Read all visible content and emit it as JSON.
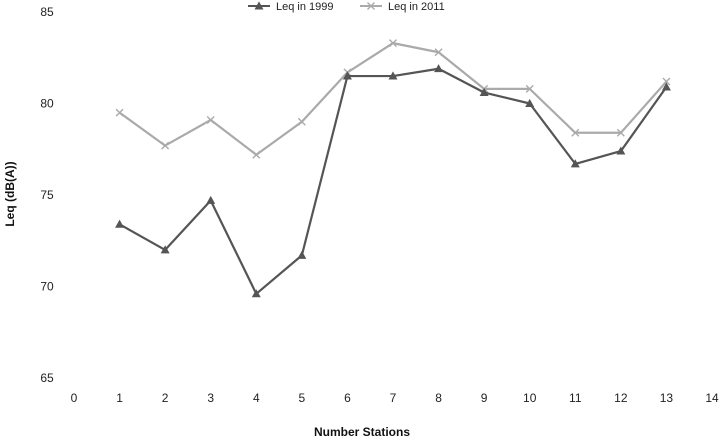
{
  "chart_data": {
    "type": "line",
    "xlabel": "Number Stations",
    "ylabel": "Leq (dB(A))",
    "xlim": [
      0,
      14
    ],
    "ylim": [
      65,
      85
    ],
    "x_ticks": [
      0,
      1,
      2,
      3,
      4,
      5,
      6,
      7,
      8,
      9,
      10,
      11,
      12,
      13,
      14
    ],
    "y_ticks": [
      65,
      70,
      75,
      80,
      85
    ],
    "x_tick_labels": [
      "0",
      "1",
      "2",
      "3",
      "4",
      "5",
      "6",
      "7",
      "8",
      "9",
      "10",
      "11",
      "12",
      "13",
      "14"
    ],
    "y_tick_labels": [
      "65",
      "70",
      "75",
      "80",
      "85"
    ],
    "legend_position": "top-center",
    "grid": false,
    "x": [
      1,
      2,
      3,
      4,
      5,
      6,
      7,
      8,
      9,
      10,
      11,
      12,
      13
    ],
    "series": [
      {
        "name": "Leq in 1999",
        "marker": "triangle",
        "color": "#555555",
        "values": [
          73.4,
          72.0,
          74.7,
          69.6,
          71.7,
          81.5,
          81.5,
          81.9,
          80.6,
          80.0,
          76.7,
          77.4,
          80.9
        ]
      },
      {
        "name": "Leq in 2011",
        "marker": "cross",
        "color": "#aaaaaa",
        "values": [
          79.5,
          77.7,
          79.1,
          77.2,
          79.0,
          81.7,
          83.3,
          82.8,
          80.8,
          80.8,
          78.4,
          78.4,
          81.2
        ]
      }
    ]
  }
}
